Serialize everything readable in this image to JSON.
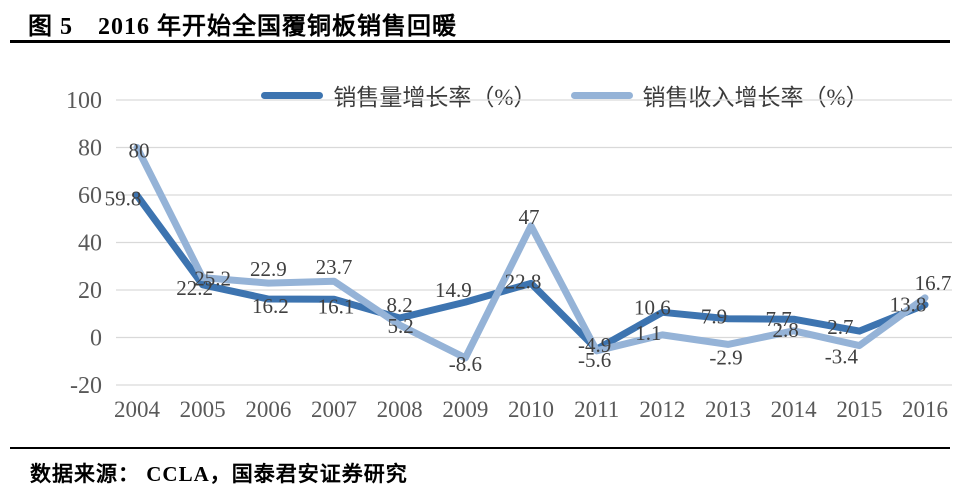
{
  "header": {
    "title": "图 5　2016 年开始全国覆铜板销售回暖"
  },
  "source": {
    "label": "数据来源：  CCLA，国泰君安证券研究"
  },
  "colors": {
    "volume_line": "#3d74b0",
    "revenue_line": "#95b3d7",
    "gridline": "#d9d9d9",
    "axis_text": "#595959",
    "data_label": "#404040",
    "rule": "#000000"
  },
  "chart_data": {
    "type": "line",
    "title": "图 5　2016 年开始全国覆铜板销售回暖",
    "categories": [
      "2004",
      "2005",
      "2006",
      "2007",
      "2008",
      "2009",
      "2010",
      "2011",
      "2012",
      "2013",
      "2014",
      "2015",
      "2016"
    ],
    "series": [
      {
        "name": "销售量增长率（%）",
        "color": "#3d74b0",
        "values": [
          59.8,
          22.2,
          16.2,
          16.1,
          8.2,
          14.9,
          22.8,
          -4.9,
          10.6,
          7.9,
          7.7,
          2.7,
          13.8
        ]
      },
      {
        "name": "销售收入增长率（%）",
        "color": "#95b3d7",
        "values": [
          80,
          25.2,
          22.9,
          23.7,
          5.2,
          -8.6,
          47,
          -5.6,
          1.1,
          -2.9,
          2.8,
          -3.4,
          16.7
        ]
      }
    ],
    "y_ticks": [
      100,
      80,
      60,
      40,
      20,
      0,
      -20
    ],
    "ylim": [
      -20,
      100
    ],
    "xlabel": "",
    "ylabel": "",
    "grid": true,
    "legend_position": "top",
    "source": "数据来源：  CCLA，国泰君安证券研究"
  }
}
